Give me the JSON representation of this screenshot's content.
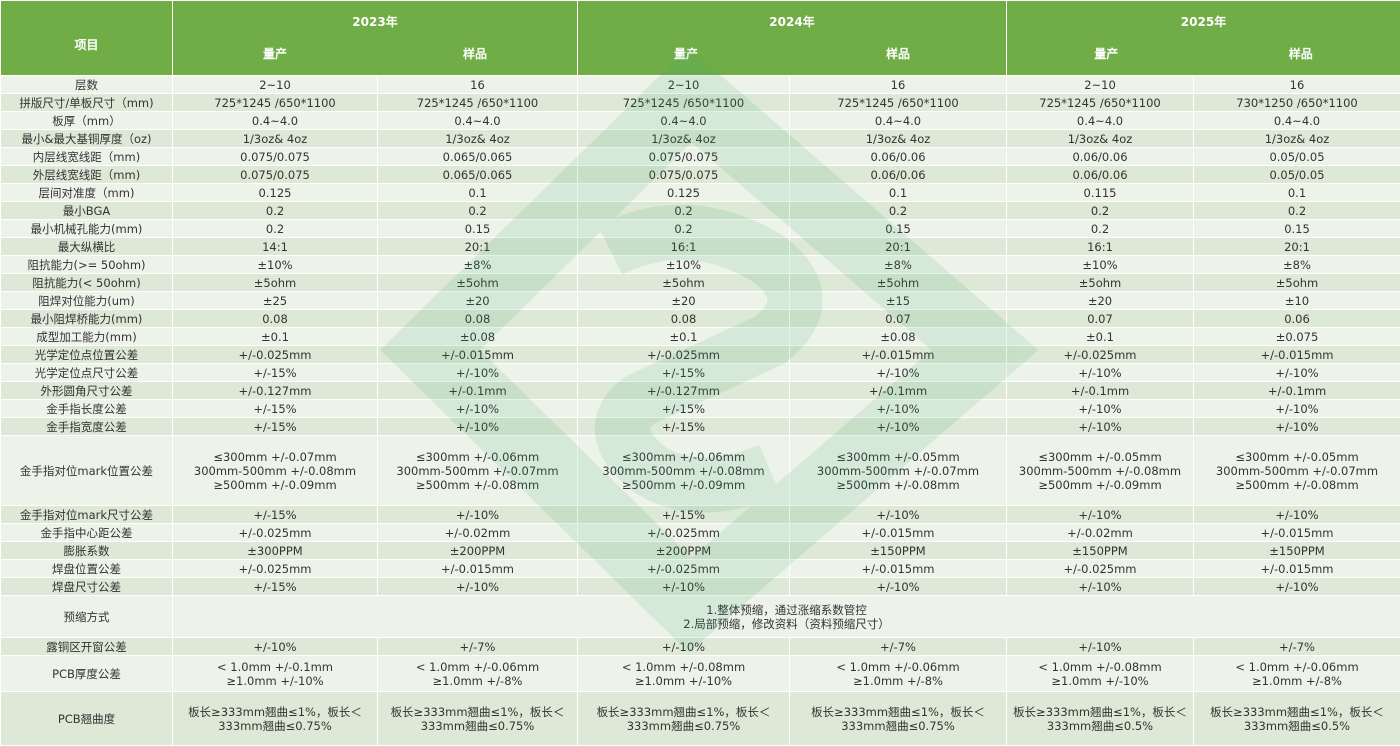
{
  "header": {
    "item_label": "项目",
    "years": [
      "2023年",
      "2024年",
      "2025年"
    ],
    "sub_labels": [
      "量产",
      "样品",
      "量产",
      "样品",
      "量产",
      "样品"
    ]
  },
  "rows": [
    {
      "label": "层数",
      "values": [
        "2~10",
        "16",
        "2~10",
        "16",
        "2~10",
        "16"
      ]
    },
    {
      "label": "拼版尺寸/单板尺寸（mm)",
      "values": [
        "725*1245 /650*1100",
        "725*1245 /650*1100",
        "725*1245 /650*1100",
        "725*1245 /650*1100",
        "725*1245 /650*1100",
        "730*1250 /650*1100"
      ]
    },
    {
      "label": "板厚（mm）",
      "values": [
        "0.4~4.0",
        "0.4~4.0",
        "0.4~4.0",
        "0.4~4.0",
        "0.4~4.0",
        "0.4~4.0"
      ]
    },
    {
      "label": "最小&最大基铜厚度（oz)",
      "values": [
        "1/3oz& 4oz",
        "1/3oz& 4oz",
        "1/3oz& 4oz",
        "1/3oz& 4oz",
        "1/3oz& 4oz",
        "1/3oz& 4oz"
      ]
    },
    {
      "label": "内层线宽线距（mm)",
      "values": [
        "0.075/0.075",
        "0.065/0.065",
        "0.075/0.075",
        "0.06/0.06",
        "0.06/0.06",
        "0.05/0.05"
      ]
    },
    {
      "label": "外层线宽线距（mm)",
      "values": [
        "0.075/0.075",
        "0.065/0.065",
        "0.075/0.075",
        "0.06/0.06",
        "0.06/0.06",
        "0.05/0.05"
      ]
    },
    {
      "label": "层间对准度（mm)",
      "values": [
        "0.125",
        "0.1",
        "0.125",
        "0.1",
        "0.115",
        "0.1"
      ]
    },
    {
      "label": "最小BGA",
      "values": [
        "0.2",
        "0.2",
        "0.2",
        "0.2",
        "0.2",
        "0.2"
      ]
    },
    {
      "label": "最小机械孔能力(mm)",
      "values": [
        "0.2",
        "0.15",
        "0.2",
        "0.15",
        "0.2",
        "0.15"
      ]
    },
    {
      "label": "最大纵横比",
      "values": [
        "14:1",
        "20:1",
        "16:1",
        "20:1",
        "16:1",
        "20:1"
      ]
    },
    {
      "label": "阻抗能力(>= 50ohm)",
      "values": [
        "±10%",
        "±8%",
        "±10%",
        "±8%",
        "±10%",
        "±8%"
      ]
    },
    {
      "label": "阻抗能力(< 50ohm)",
      "values": [
        "±5ohm",
        "±5ohm",
        "±5ohm",
        "±5ohm",
        "±5ohm",
        "±5ohm"
      ]
    },
    {
      "label": "阻焊对位能力(um)",
      "values": [
        "±25",
        "±20",
        "±20",
        "±15",
        "±20",
        "±10"
      ]
    },
    {
      "label": "最小阻焊桥能力(mm)",
      "values": [
        "0.08",
        "0.08",
        "0.08",
        "0.07",
        "0.07",
        "0.06"
      ]
    },
    {
      "label": "成型加工能力(mm)",
      "values": [
        "±0.1",
        "±0.08",
        "±0.1",
        "±0.08",
        "±0.1",
        "±0.075"
      ]
    },
    {
      "label": "光学定位点位置公差",
      "values": [
        "+/-0.025mm",
        "+/-0.015mm",
        "+/-0.025mm",
        "+/-0.015mm",
        "+/-0.025mm",
        "+/-0.015mm"
      ]
    },
    {
      "label": "光学定位点尺寸公差",
      "values": [
        "+/-15%",
        "+/-10%",
        "+/-15%",
        "+/-10%",
        "+/-10%",
        "+/-10%"
      ]
    },
    {
      "label": "外形圆角尺寸公差",
      "values": [
        "+/-0.127mm",
        "+/-0.1mm",
        "+/-0.127mm",
        "+/-0.1mm",
        "+/-0.1mm",
        "+/-0.1mm"
      ]
    },
    {
      "label": "金手指长度公差",
      "values": [
        "+/-15%",
        "+/-10%",
        "+/-15%",
        "+/-10%",
        "+/-10%",
        "+/-10%"
      ]
    },
    {
      "label": "金手指宽度公差",
      "values": [
        "+/-15%",
        "+/-10%",
        "+/-15%",
        "+/-10%",
        "+/-10%",
        "+/-10%"
      ]
    },
    {
      "label": "金手指对位mark位置公差",
      "values": [
        "≤300mm    +/-0.07mm\n300mm-500mm   +/-0.08mm\n≥500mm    +/-0.09mm",
        "≤300mm    +/-0.06mm\n300mm-500mm  +/-0.07mm\n≥500mm    +/-0.08mm",
        "≤300mm    +/-0.06mm\n300mm-500mm  +/-0.08mm\n≥500mm    +/-0.09mm",
        "≤300mm    +/-0.05mm\n300mm-500mm  +/-0.07mm\n≥500mm    +/-0.08mm",
        "≤300mm    +/-0.05mm\n300mm-500mm  +/-0.08mm\n≥500mm    +/-0.09mm",
        "≤300mm    +/-0.05mm\n300mm-500mm  +/-0.07mm\n≥500mm    +/-0.08mm"
      ]
    },
    {
      "label": "金手指对位mark尺寸公差",
      "values": [
        "+/-15%",
        "+/-10%",
        "+/-15%",
        "+/-10%",
        "+/-10%",
        "+/-10%"
      ]
    },
    {
      "label": "金手指中心距公差",
      "values": [
        "+/-0.025mm",
        "+/-0.02mm",
        "+/-0.025mm",
        "+/-0.015mm",
        "+/-0.02mm",
        "+/-0.015mm"
      ]
    },
    {
      "label": "膨胀系数",
      "values": [
        "±300PPM",
        "±200PPM",
        "±200PPM",
        "±150PPM",
        "±150PPM",
        "±150PPM"
      ]
    },
    {
      "label": "焊盘位置公差",
      "values": [
        "+/-0.025mm",
        "+/-0.015mm",
        "+/-0.025mm",
        "+/-0.015mm",
        "+/-0.025mm",
        "+/-0.015mm"
      ]
    },
    {
      "label": "焊盘尺寸公差",
      "values": [
        "+/-15%",
        "+/-10%",
        "+/-10%",
        "+/-10%",
        "+/-10%",
        "+/-10%"
      ]
    },
    {
      "label": "预缩方式",
      "merged": "1.整体预缩，通过涨缩系数管控\n2.局部预缩，修改资料（资料预缩尺寸）"
    },
    {
      "label": "露铜区开窗公差",
      "values": [
        "+/-10%",
        "+/-7%",
        "+/-10%",
        "+/-7%",
        "+/-10%",
        "+/-7%"
      ]
    },
    {
      "label": "PCB厚度公差",
      "values": [
        "< 1.0mm   +/-0.1mm\n≥1.0mm  +/-10%",
        "< 1.0mm   +/-0.06mm\n≥1.0mm  +/-8%",
        "< 1.0mm   +/-0.08mm\n≥1.0mm  +/-10%",
        "< 1.0mm   +/-0.06mm\n≥1.0mm  +/-8%",
        "< 1.0mm   +/-0.08mm\n≥1.0mm  +/-10%",
        "< 1.0mm   +/-0.06mm\n≥1.0mm  +/-8%"
      ]
    },
    {
      "label": "PCB翘曲度",
      "values": [
        "板长≥333mm翘曲≤1%，板长＜\n333mm翘曲≤0.75%",
        "板长≥333mm翘曲≤1%，板长＜\n333mm翘曲≤0.75%",
        "板长≥333mm翘曲≤1%，板长＜\n333mm翘曲≤0.75%",
        "板长≥333mm翘曲≤1%，板长＜\n333mm翘曲≤0.75%",
        "板长≥333mm翘曲≤1%，板长＜\n333mm翘曲≤0.5%",
        "板长≥333mm翘曲≤1%，板长＜\n333mm翘曲≤0.5%"
      ]
    }
  ]
}
